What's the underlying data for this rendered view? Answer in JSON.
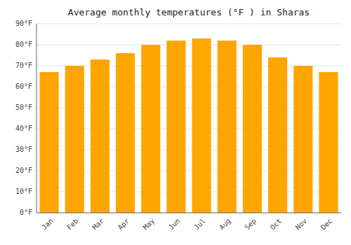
{
  "chart_data": {
    "type": "bar",
    "title": "Average monthly temperatures (°F ) in Sharas",
    "categories": [
      "Jan",
      "Feb",
      "Mar",
      "Apr",
      "May",
      "Jun",
      "Jul",
      "Aug",
      "Sep",
      "Oct",
      "Nov",
      "Dec"
    ],
    "values": [
      67,
      70,
      73,
      76,
      80,
      82,
      83,
      82,
      80,
      74,
      70,
      67
    ],
    "color": "#FFA500",
    "ylim": [
      0,
      90
    ],
    "yticks": [
      {
        "value": 0,
        "label": "0°F"
      },
      {
        "value": 10,
        "label": "10°F"
      },
      {
        "value": 20,
        "label": "20°F"
      },
      {
        "value": 30,
        "label": "30°F"
      },
      {
        "value": 40,
        "label": "40°F"
      },
      {
        "value": 50,
        "label": "50°F"
      },
      {
        "value": 60,
        "label": "60°F"
      },
      {
        "value": 70,
        "label": "70°F"
      },
      {
        "value": 80,
        "label": "80°F"
      },
      {
        "value": 90,
        "label": "90°F"
      }
    ],
    "grid": true
  }
}
